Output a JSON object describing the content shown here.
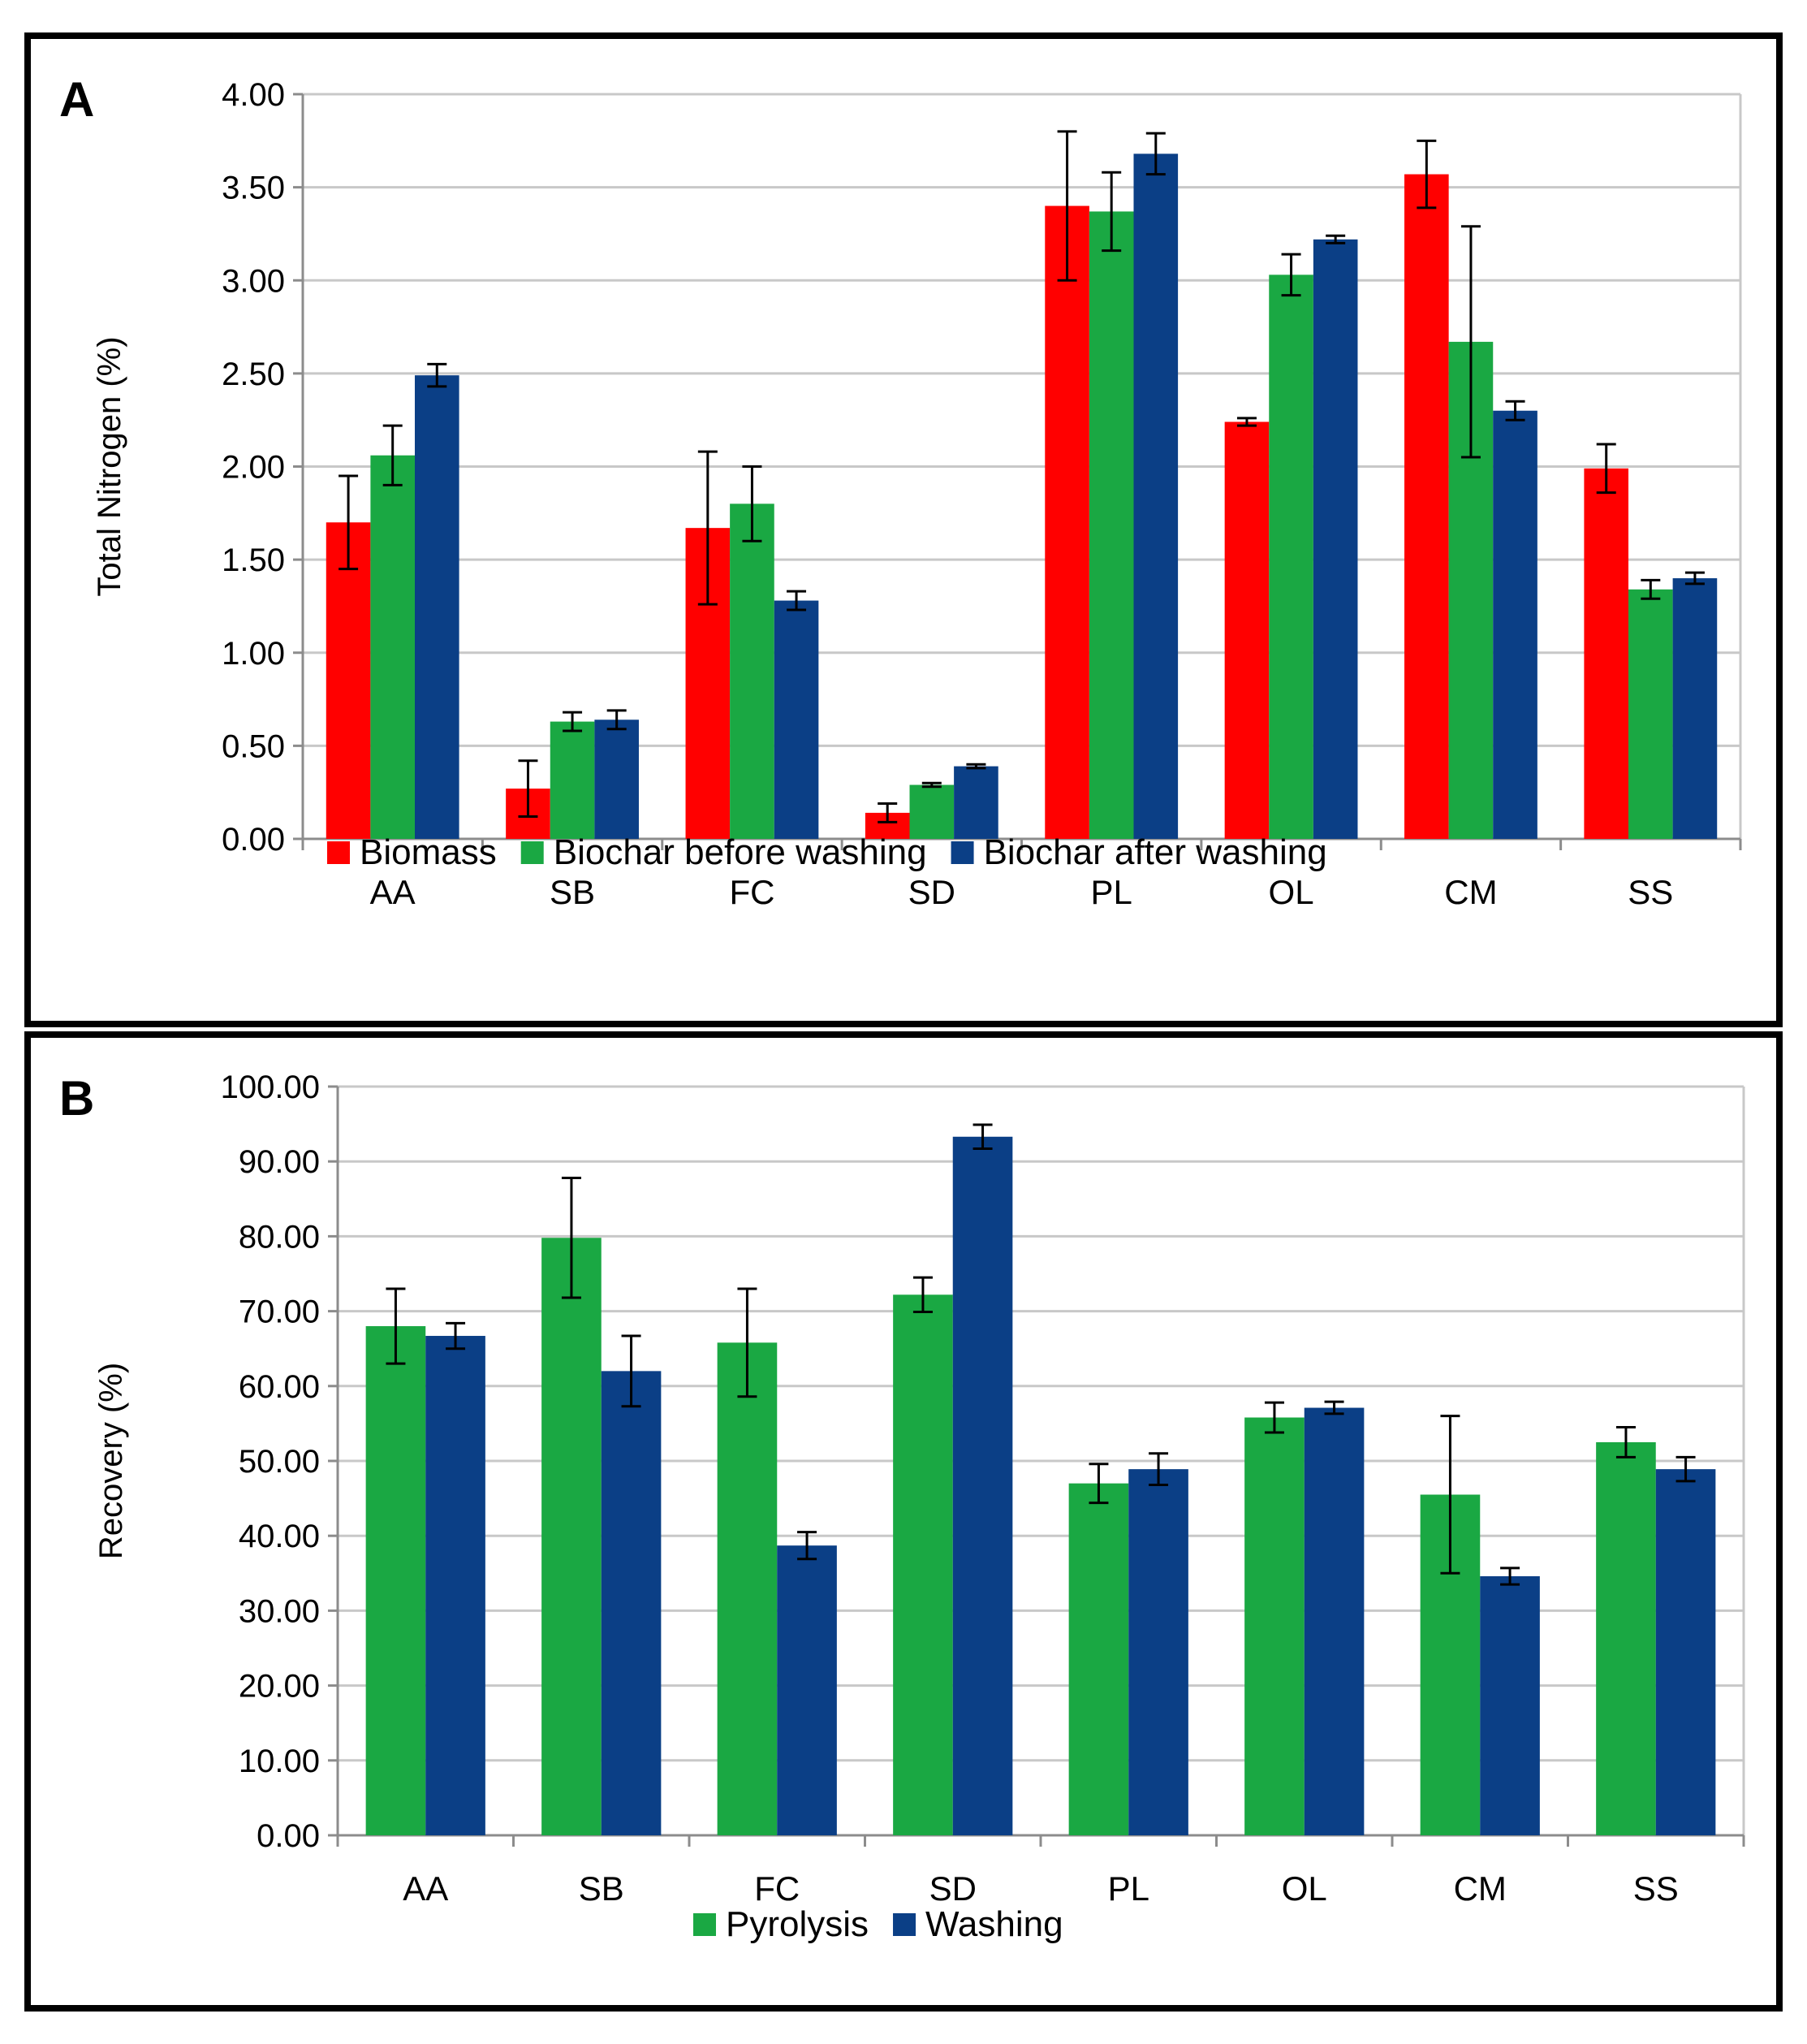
{
  "colors": {
    "red": "#ff0000",
    "green": "#1aa843",
    "blue": "#0b3f86",
    "grid": "#c8c8c8",
    "axis": "#8c8c8c"
  },
  "chart_data": [
    {
      "panel_label": "A",
      "type": "bar",
      "categories": [
        "AA",
        "SB",
        "FC",
        "SD",
        "PL",
        "OL",
        "CM",
        "SS"
      ],
      "ylabel": "Total Nitrogen (%)",
      "ylim": [
        0,
        4
      ],
      "yticks": [
        "0.00",
        "0.50",
        "1.00",
        "1.50",
        "2.00",
        "2.50",
        "3.00",
        "3.50",
        "4.00"
      ],
      "ytick_values": [
        0,
        0.5,
        1,
        1.5,
        2,
        2.5,
        3,
        3.5,
        4
      ],
      "grid": true,
      "legend_position": "bottom",
      "series": [
        {
          "name": "Biomass",
          "color": "#ff0000",
          "values": [
            1.7,
            0.27,
            1.67,
            0.14,
            3.4,
            2.24,
            3.57,
            1.99
          ],
          "errors": [
            0.25,
            0.15,
            0.41,
            0.05,
            0.4,
            0.02,
            0.18,
            0.13
          ]
        },
        {
          "name": "Biochar before washing",
          "color": "#1aa843",
          "values": [
            2.06,
            0.63,
            1.8,
            0.29,
            3.37,
            3.03,
            2.67,
            1.34
          ],
          "errors": [
            0.16,
            0.05,
            0.2,
            0.01,
            0.21,
            0.11,
            0.62,
            0.05
          ]
        },
        {
          "name": "Biochar after washing",
          "color": "#0b3f86",
          "values": [
            2.49,
            0.64,
            1.28,
            0.39,
            3.68,
            3.22,
            2.3,
            1.4
          ],
          "errors": [
            0.06,
            0.05,
            0.05,
            0.01,
            0.11,
            0.02,
            0.05,
            0.03
          ]
        }
      ]
    },
    {
      "panel_label": "B",
      "type": "bar",
      "categories": [
        "AA",
        "SB",
        "FC",
        "SD",
        "PL",
        "OL",
        "CM",
        "SS"
      ],
      "ylabel": "Recovery (%)",
      "ylim": [
        0,
        100
      ],
      "yticks": [
        "0.00",
        "10.00",
        "20.00",
        "30.00",
        "40.00",
        "50.00",
        "60.00",
        "70.00",
        "80.00",
        "90.00",
        "100.00"
      ],
      "ytick_values": [
        0,
        10,
        20,
        30,
        40,
        50,
        60,
        70,
        80,
        90,
        100
      ],
      "grid": true,
      "legend_position": "bottom",
      "series": [
        {
          "name": "Pyrolysis",
          "color": "#1aa843",
          "values": [
            68.0,
            79.8,
            65.8,
            72.2,
            47.0,
            55.8,
            45.5,
            52.5
          ],
          "errors": [
            5.0,
            8.0,
            7.2,
            2.3,
            2.6,
            2.0,
            10.5,
            2.0
          ]
        },
        {
          "name": "Washing",
          "color": "#0b3f86",
          "values": [
            66.7,
            62.0,
            38.7,
            93.3,
            48.9,
            57.1,
            34.6,
            48.9
          ],
          "errors": [
            1.7,
            4.7,
            1.8,
            1.6,
            2.1,
            0.8,
            1.1,
            1.6
          ]
        }
      ]
    }
  ]
}
